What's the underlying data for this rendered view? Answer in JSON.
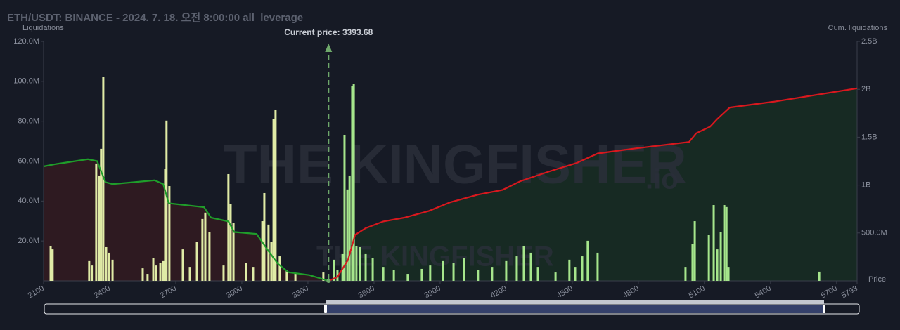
{
  "chart_data": {
    "type": "bar",
    "title": "ETH/USDT: BINANCE - 2024. 7. 18. 오전 8:00:00 all_leverage",
    "y_label": "Liquidations",
    "y2_label": "Cum. liquidations",
    "x_label": "Price",
    "annotation": "Current price: 3393.68",
    "current_price": 3393.68,
    "watermark": "THE KINGFISHER",
    "watermark_suffix": ".io",
    "xlim": [
      2100,
      5793
    ],
    "xticks": [
      2100,
      2400,
      2700,
      3000,
      3300,
      3600,
      3900,
      4200,
      4500,
      4800,
      5100,
      5400,
      5700,
      5793
    ],
    "ylim": [
      0,
      120000000
    ],
    "yticks": [
      {
        "value": 20000000,
        "label": "20.0M"
      },
      {
        "value": 40000000,
        "label": "40.0M"
      },
      {
        "value": 60000000,
        "label": "60.0M"
      },
      {
        "value": 80000000,
        "label": "80.0M"
      },
      {
        "value": 100000000,
        "label": "100.0M"
      },
      {
        "value": 120000000,
        "label": "120.0M"
      }
    ],
    "y2lim": [
      0,
      2500000000
    ],
    "y2ticks": [
      {
        "value": 500000000,
        "label": "500.0M"
      },
      {
        "value": 1000000000,
        "label": "1B"
      },
      {
        "value": 1500000000,
        "label": "1.5B"
      },
      {
        "value": 2000000000,
        "label": "2B"
      },
      {
        "value": 2500000000,
        "label": "2.5B"
      }
    ],
    "bar_colors": [
      "#e0eba6",
      "#a6e68c"
    ],
    "x": [
      2132,
      2141,
      2307,
      2319,
      2339,
      2352,
      2361,
      2371,
      2384,
      2397,
      2413,
      2550,
      2572,
      2598,
      2610,
      2630,
      2643,
      2652,
      2658,
      2671,
      2732,
      2764,
      2796,
      2821,
      2834,
      2853,
      2917,
      2939,
      2949,
      2962,
      3019,
      3051,
      3093,
      3102,
      3121,
      3134,
      3144,
      3153,
      3172,
      3204,
      3243,
      3370,
      3418,
      3434,
      3457,
      3466,
      3479,
      3489,
      3501,
      3508,
      3520,
      3536,
      3562,
      3594,
      3642,
      3690,
      3753,
      3817,
      3855,
      3913,
      3961,
      4009,
      4072,
      4136,
      4200,
      4248,
      4280,
      4312,
      4344,
      4424,
      4487,
      4513,
      4545,
      4570,
      4615,
      5014,
      5046,
      5056,
      5120,
      5142,
      5158,
      5174,
      5190,
      5200,
      5209,
      5621
    ],
    "values": [
      17600000,
      15800000,
      9900000,
      7700000,
      58800000,
      52800000,
      66200000,
      102100000,
      16900000,
      14100000,
      10600000,
      6300000,
      3500000,
      11300000,
      7700000,
      8800000,
      9900000,
      56000000,
      80300000,
      47500000,
      15800000,
      7000000,
      19400000,
      31000000,
      34200000,
      24600000,
      7700000,
      53500000,
      38700000,
      28900000,
      8800000,
      7000000,
      29900000,
      44000000,
      28200000,
      19400000,
      81000000,
      85600000,
      12300000,
      5300000,
      3500000,
      4200000,
      10600000,
      5300000,
      13400000,
      73200000,
      45800000,
      52800000,
      97500000,
      98600000,
      17600000,
      16900000,
      13400000,
      11300000,
      7000000,
      5300000,
      3500000,
      6000000,
      7700000,
      9900000,
      8800000,
      11300000,
      5300000,
      7000000,
      9900000,
      12300000,
      17600000,
      14100000,
      7000000,
      4200000,
      10600000,
      7000000,
      12300000,
      20100000,
      14100000,
      7000000,
      18300000,
      29900000,
      22900000,
      38000000,
      15800000,
      24600000,
      38000000,
      37000000,
      7000000,
      4600000
    ],
    "cumulative": [
      {
        "color": "#1f9d2a",
        "fill": "#2e1a21",
        "axis": "y2",
        "x": [
          2100,
          2157,
          2301,
          2343,
          2381,
          2413,
          2604,
          2643,
          2668,
          2828,
          2860,
          2939,
          2965,
          3067,
          3115,
          3163,
          3211,
          3307,
          3393.68
        ],
        "values": [
          1195000000,
          1220000000,
          1270000000,
          1250000000,
          1030000000,
          1010000000,
          1050000000,
          1010000000,
          810000000,
          770000000,
          660000000,
          620000000,
          510000000,
          490000000,
          330000000,
          180000000,
          90000000,
          60000000,
          0
        ]
      },
      {
        "color": "#d8181e",
        "fill": "#172a23",
        "axis": "y2",
        "x": [
          3393.68,
          3434,
          3482,
          3514,
          3562,
          3642,
          3737,
          3849,
          3945,
          4072,
          4184,
          4264,
          4392,
          4519,
          4615,
          4775,
          5030,
          5062,
          5126,
          5158,
          5215,
          5413,
          5793
        ],
        "values": [
          0,
          40000000,
          220000000,
          480000000,
          550000000,
          620000000,
          660000000,
          730000000,
          820000000,
          900000000,
          950000000,
          1040000000,
          1140000000,
          1230000000,
          1330000000,
          1380000000,
          1450000000,
          1540000000,
          1610000000,
          1690000000,
          1810000000,
          1870000000,
          2010000000
        ]
      }
    ]
  }
}
